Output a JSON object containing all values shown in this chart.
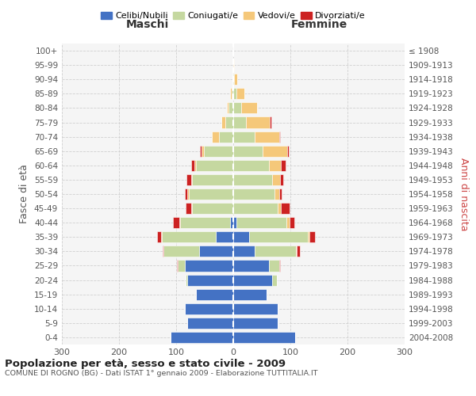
{
  "age_groups": [
    "0-4",
    "5-9",
    "10-14",
    "15-19",
    "20-24",
    "25-29",
    "30-34",
    "35-39",
    "40-44",
    "45-49",
    "50-54",
    "55-59",
    "60-64",
    "65-69",
    "70-74",
    "75-79",
    "80-84",
    "85-89",
    "90-94",
    "95-99",
    "100+"
  ],
  "birth_years": [
    "2004-2008",
    "1999-2003",
    "1994-1998",
    "1989-1993",
    "1984-1988",
    "1979-1983",
    "1974-1978",
    "1969-1973",
    "1964-1968",
    "1959-1963",
    "1954-1958",
    "1949-1953",
    "1944-1948",
    "1939-1943",
    "1934-1938",
    "1929-1933",
    "1924-1928",
    "1919-1923",
    "1914-1918",
    "1909-1913",
    "≤ 1908"
  ],
  "males_celibi": [
    110,
    80,
    85,
    65,
    80,
    85,
    60,
    30,
    5,
    0,
    0,
    0,
    0,
    0,
    0,
    0,
    0,
    0,
    0,
    0,
    0
  ],
  "males_coniugati": [
    0,
    0,
    0,
    0,
    4,
    12,
    62,
    95,
    88,
    72,
    78,
    72,
    65,
    52,
    25,
    14,
    8,
    3,
    1,
    0,
    0
  ],
  "males_vedovi": [
    0,
    0,
    0,
    0,
    0,
    0,
    0,
    1,
    1,
    2,
    2,
    2,
    3,
    4,
    12,
    7,
    3,
    2,
    0,
    0,
    0
  ],
  "males_divorziati": [
    0,
    0,
    0,
    0,
    0,
    1,
    2,
    8,
    12,
    10,
    5,
    8,
    6,
    2,
    0,
    0,
    0,
    0,
    0,
    0,
    0
  ],
  "females_nubili": [
    108,
    78,
    78,
    58,
    68,
    62,
    38,
    28,
    5,
    0,
    0,
    0,
    0,
    0,
    0,
    0,
    0,
    0,
    0,
    0,
    0
  ],
  "females_coniugate": [
    0,
    0,
    0,
    0,
    8,
    18,
    72,
    102,
    88,
    78,
    72,
    68,
    62,
    52,
    38,
    22,
    14,
    5,
    2,
    0,
    0
  ],
  "females_vedove": [
    0,
    0,
    0,
    0,
    0,
    0,
    1,
    3,
    5,
    6,
    8,
    14,
    22,
    42,
    42,
    42,
    28,
    14,
    5,
    1,
    0
  ],
  "females_divorziate": [
    0,
    0,
    0,
    0,
    0,
    2,
    5,
    10,
    9,
    14,
    5,
    5,
    7,
    3,
    2,
    2,
    0,
    0,
    0,
    0,
    0
  ],
  "color_celibi": "#4472c4",
  "color_coniugati": "#c5d8a0",
  "color_vedovi": "#f5c87a",
  "color_divorziati": "#cc2222",
  "title": "Popolazione per età, sesso e stato civile - 2009",
  "subtitle": "COMUNE DI ROGNO (BG) - Dati ISTAT 1° gennaio 2009 - Elaborazione TUTTITALIA.IT",
  "label_maschi": "Maschi",
  "label_femmine": "Femmine",
  "ylabel_left": "Fasce di età",
  "ylabel_right": "Anni di nascita",
  "legend_labels": [
    "Celibi/Nubili",
    "Coniugati/e",
    "Vedovi/e",
    "Divorziati/e"
  ],
  "xlim": 300,
  "bg_color": "#f5f5f5",
  "grid_color": "#cccccc"
}
